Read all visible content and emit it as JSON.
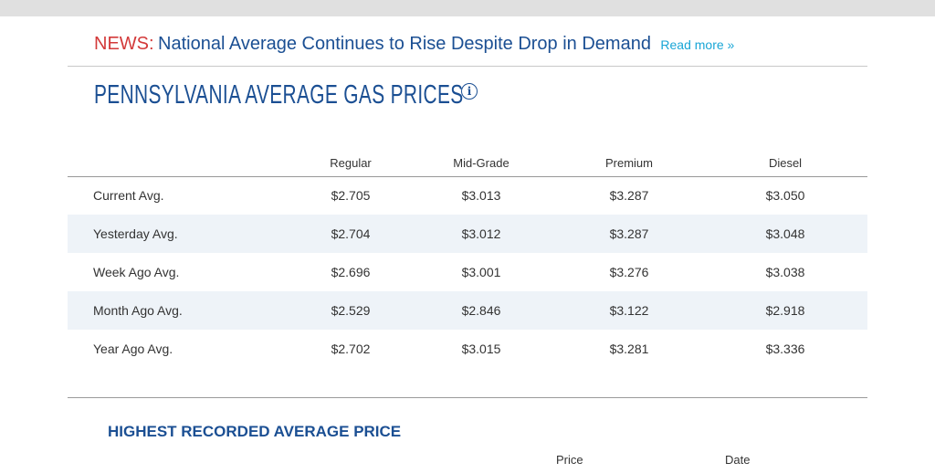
{
  "news": {
    "label": "NEWS:",
    "headline": "National Average Continues to Rise Despite Drop in Demand",
    "read_more": "Read more »"
  },
  "page_title": "PENNSYLVANIA AVERAGE GAS PRICES",
  "info_icon_glyph": "i",
  "prices_table": {
    "headers": [
      "",
      "Regular",
      "Mid-Grade",
      "Premium",
      "Diesel"
    ],
    "rows": [
      {
        "label": "Current Avg.",
        "values": [
          "$2.705",
          "$3.013",
          "$3.287",
          "$3.050"
        ]
      },
      {
        "label": "Yesterday Avg.",
        "values": [
          "$2.704",
          "$3.012",
          "$3.287",
          "$3.048"
        ]
      },
      {
        "label": "Week Ago Avg.",
        "values": [
          "$2.696",
          "$3.001",
          "$3.276",
          "$3.038"
        ]
      },
      {
        "label": "Month Ago Avg.",
        "values": [
          "$2.529",
          "$2.846",
          "$3.122",
          "$2.918"
        ]
      },
      {
        "label": "Year Ago Avg.",
        "values": [
          "$2.702",
          "$3.015",
          "$3.281",
          "$3.336"
        ]
      }
    ]
  },
  "highest": {
    "title": "HIGHEST RECORDED AVERAGE PRICE",
    "headers": [
      "Price",
      "Date"
    ]
  },
  "colors": {
    "news_label": "#d33a3a",
    "brand_blue": "#1b4f93",
    "link": "#19a6d6",
    "row_shade": "#eef3f8"
  }
}
